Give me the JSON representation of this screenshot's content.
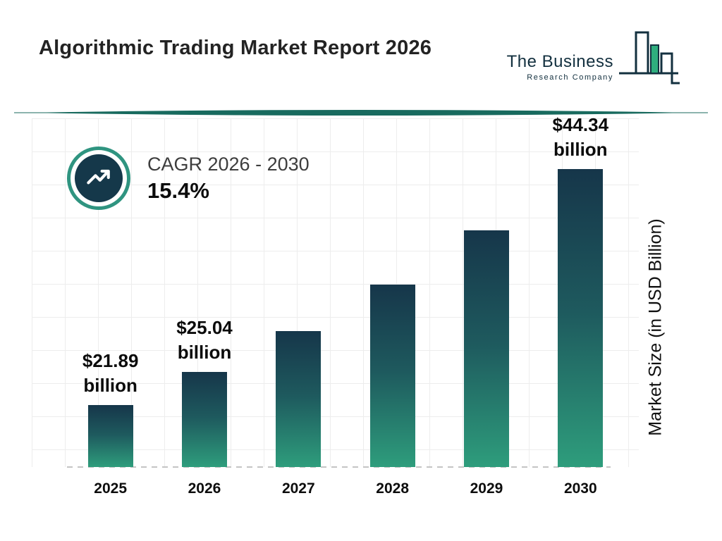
{
  "header": {
    "title": "Algorithmic Trading Market Report 2026",
    "logo": {
      "line1": "The Business",
      "line2": "Research Company"
    }
  },
  "cagr": {
    "label": "CAGR 2026 - 2030",
    "value": "15.4%"
  },
  "chart_data": {
    "type": "bar",
    "title": "Algorithmic Trading Market Report 2026",
    "categories": [
      "2025",
      "2026",
      "2027",
      "2028",
      "2029",
      "2030"
    ],
    "values": [
      21.89,
      25.04,
      28.9,
      33.35,
      38.48,
      44.34
    ],
    "value_labels": [
      "$21.89 billion",
      "$25.04 billion",
      null,
      null,
      null,
      "$44.34 billion"
    ],
    "xlabel": "",
    "ylabel": "Market Size (in USD Billion)",
    "ylim": [
      16,
      49
    ],
    "grid": true,
    "legend": "none",
    "colors": {
      "bar_gradient_top": "#16364a",
      "bar_gradient_bottom": "#2e9d7c",
      "divider_teal": "#186a5e",
      "ring_teal": "#2f9480",
      "badge_navy": "#15384a",
      "logo_green": "#2fae7e",
      "logo_navy": "#13303f"
    },
    "bars": [
      {
        "year": "2025",
        "value": 21.89,
        "label_amount": "$21.89",
        "label_unit": "billion"
      },
      {
        "year": "2026",
        "value": 25.04,
        "label_amount": "$25.04",
        "label_unit": "billion"
      },
      {
        "year": "2027",
        "value": 28.9
      },
      {
        "year": "2028",
        "value": 33.35
      },
      {
        "year": "2029",
        "value": 38.48
      },
      {
        "year": "2030",
        "value": 44.34,
        "label_amount": "$44.34",
        "label_unit": "billion"
      }
    ]
  }
}
